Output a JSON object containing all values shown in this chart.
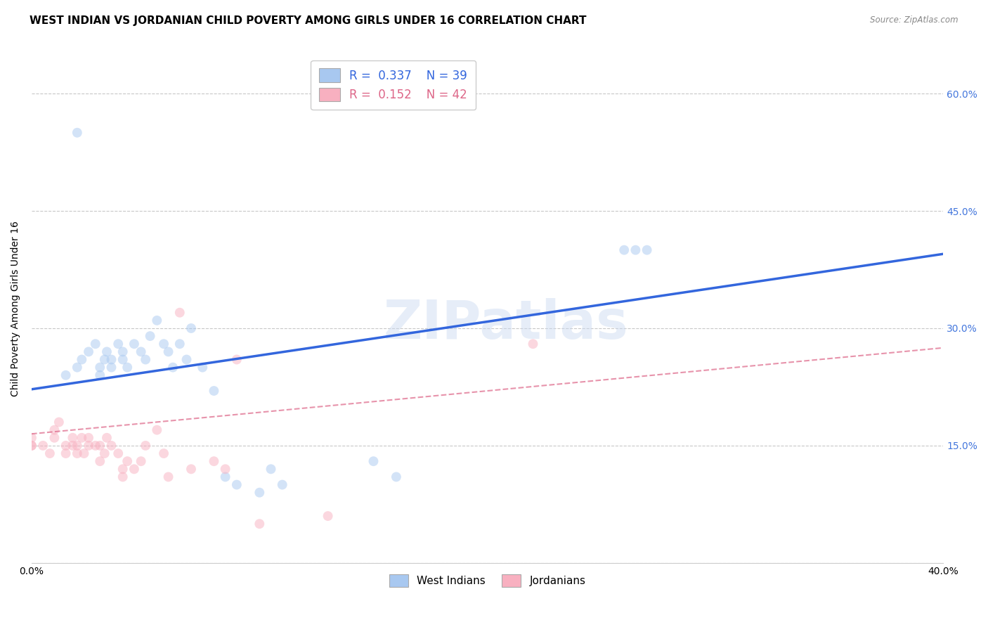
{
  "title": "WEST INDIAN VS JORDANIAN CHILD POVERTY AMONG GIRLS UNDER 16 CORRELATION CHART",
  "source": "Source: ZipAtlas.com",
  "ylabel": "Child Poverty Among Girls Under 16",
  "xlim": [
    0.0,
    0.4
  ],
  "ylim": [
    0.0,
    0.65
  ],
  "xticks": [
    0.0,
    0.05,
    0.1,
    0.15,
    0.2,
    0.25,
    0.3,
    0.35,
    0.4
  ],
  "yticks": [
    0.0,
    0.15,
    0.3,
    0.45,
    0.6
  ],
  "xtick_labels": [
    "0.0%",
    "",
    "",
    "",
    "",
    "",
    "",
    "",
    "40.0%"
  ],
  "ytick_labels": [
    "",
    "15.0%",
    "30.0%",
    "45.0%",
    "60.0%"
  ],
  "grid_color": "#c8c8c8",
  "background_color": "#ffffff",
  "watermark": "ZIPatlas",
  "west_indian_color": "#a8c8f0",
  "jordanian_color": "#f8b0c0",
  "west_indian_line_color": "#3366dd",
  "jordanian_line_color": "#dd6688",
  "legend_R1": "0.337",
  "legend_N1": "39",
  "legend_R2": "0.152",
  "legend_N2": "42",
  "west_indian_x": [
    0.015,
    0.02,
    0.022,
    0.025,
    0.028,
    0.03,
    0.03,
    0.032,
    0.033,
    0.035,
    0.035,
    0.038,
    0.04,
    0.04,
    0.042,
    0.045,
    0.048,
    0.05,
    0.052,
    0.055,
    0.058,
    0.06,
    0.062,
    0.065,
    0.068,
    0.07,
    0.075,
    0.08,
    0.085,
    0.09,
    0.1,
    0.105,
    0.11,
    0.15,
    0.16,
    0.26,
    0.265,
    0.27,
    0.02
  ],
  "west_indian_y": [
    0.24,
    0.25,
    0.26,
    0.27,
    0.28,
    0.24,
    0.25,
    0.26,
    0.27,
    0.25,
    0.26,
    0.28,
    0.26,
    0.27,
    0.25,
    0.28,
    0.27,
    0.26,
    0.29,
    0.31,
    0.28,
    0.27,
    0.25,
    0.28,
    0.26,
    0.3,
    0.25,
    0.22,
    0.11,
    0.1,
    0.09,
    0.12,
    0.1,
    0.13,
    0.11,
    0.4,
    0.4,
    0.4,
    0.55
  ],
  "jordanian_x": [
    0.0,
    0.0,
    0.0,
    0.005,
    0.008,
    0.01,
    0.01,
    0.012,
    0.015,
    0.015,
    0.018,
    0.018,
    0.02,
    0.02,
    0.022,
    0.023,
    0.025,
    0.025,
    0.028,
    0.03,
    0.03,
    0.032,
    0.033,
    0.035,
    0.038,
    0.04,
    0.04,
    0.042,
    0.045,
    0.048,
    0.05,
    0.055,
    0.058,
    0.06,
    0.065,
    0.07,
    0.08,
    0.085,
    0.09,
    0.1,
    0.13,
    0.22
  ],
  "jordanian_y": [
    0.15,
    0.15,
    0.16,
    0.15,
    0.14,
    0.16,
    0.17,
    0.18,
    0.14,
    0.15,
    0.16,
    0.15,
    0.14,
    0.15,
    0.16,
    0.14,
    0.15,
    0.16,
    0.15,
    0.13,
    0.15,
    0.14,
    0.16,
    0.15,
    0.14,
    0.11,
    0.12,
    0.13,
    0.12,
    0.13,
    0.15,
    0.17,
    0.14,
    0.11,
    0.32,
    0.12,
    0.13,
    0.12,
    0.26,
    0.05,
    0.06,
    0.28
  ],
  "title_fontsize": 11,
  "axis_label_fontsize": 10,
  "tick_fontsize": 10,
  "legend_fontsize": 12,
  "marker_size": 100,
  "marker_alpha": 0.5,
  "right_ytick_color": "#4477dd",
  "bottom_legend_label1": "West Indians",
  "bottom_legend_label2": "Jordanians"
}
